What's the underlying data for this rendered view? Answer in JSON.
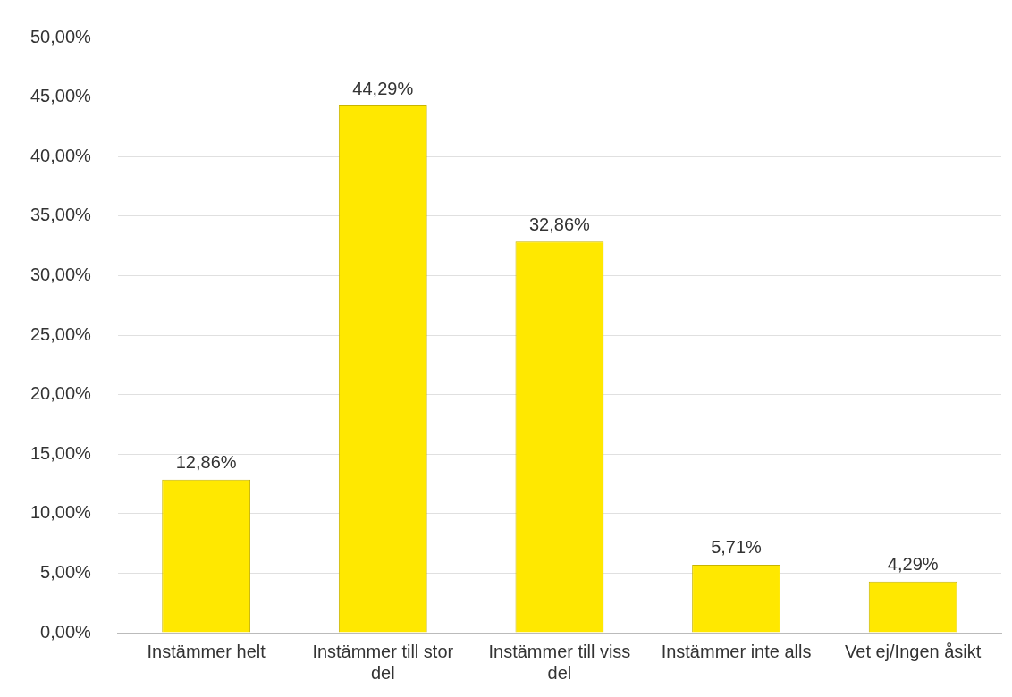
{
  "chart_data": {
    "type": "bar",
    "categories": [
      "Instämmer helt",
      "Instämmer till stor del",
      "Instämmer till viss del",
      "Instämmer inte alls",
      "Vet ej/Ingen åsikt"
    ],
    "values": [
      12.86,
      44.29,
      32.86,
      5.71,
      4.29
    ],
    "value_labels": [
      "12,86%",
      "44,29%",
      "32,86%",
      "5,71%",
      "4,29%"
    ],
    "color": "#ffe800",
    "ylim": [
      0,
      50
    ],
    "yticks": [
      {
        "value": 0,
        "label": "0,00%"
      },
      {
        "value": 5,
        "label": "5,00%"
      },
      {
        "value": 10,
        "label": "10,00%"
      },
      {
        "value": 15,
        "label": "15,00%"
      },
      {
        "value": 20,
        "label": "20,00%"
      },
      {
        "value": 25,
        "label": "25,00%"
      },
      {
        "value": 30,
        "label": "30,00%"
      },
      {
        "value": 35,
        "label": "35,00%"
      },
      {
        "value": 40,
        "label": "40,00%"
      },
      {
        "value": 45,
        "label": "45,00%"
      },
      {
        "value": 50,
        "label": "50,00%"
      }
    ],
    "grid": "y"
  }
}
